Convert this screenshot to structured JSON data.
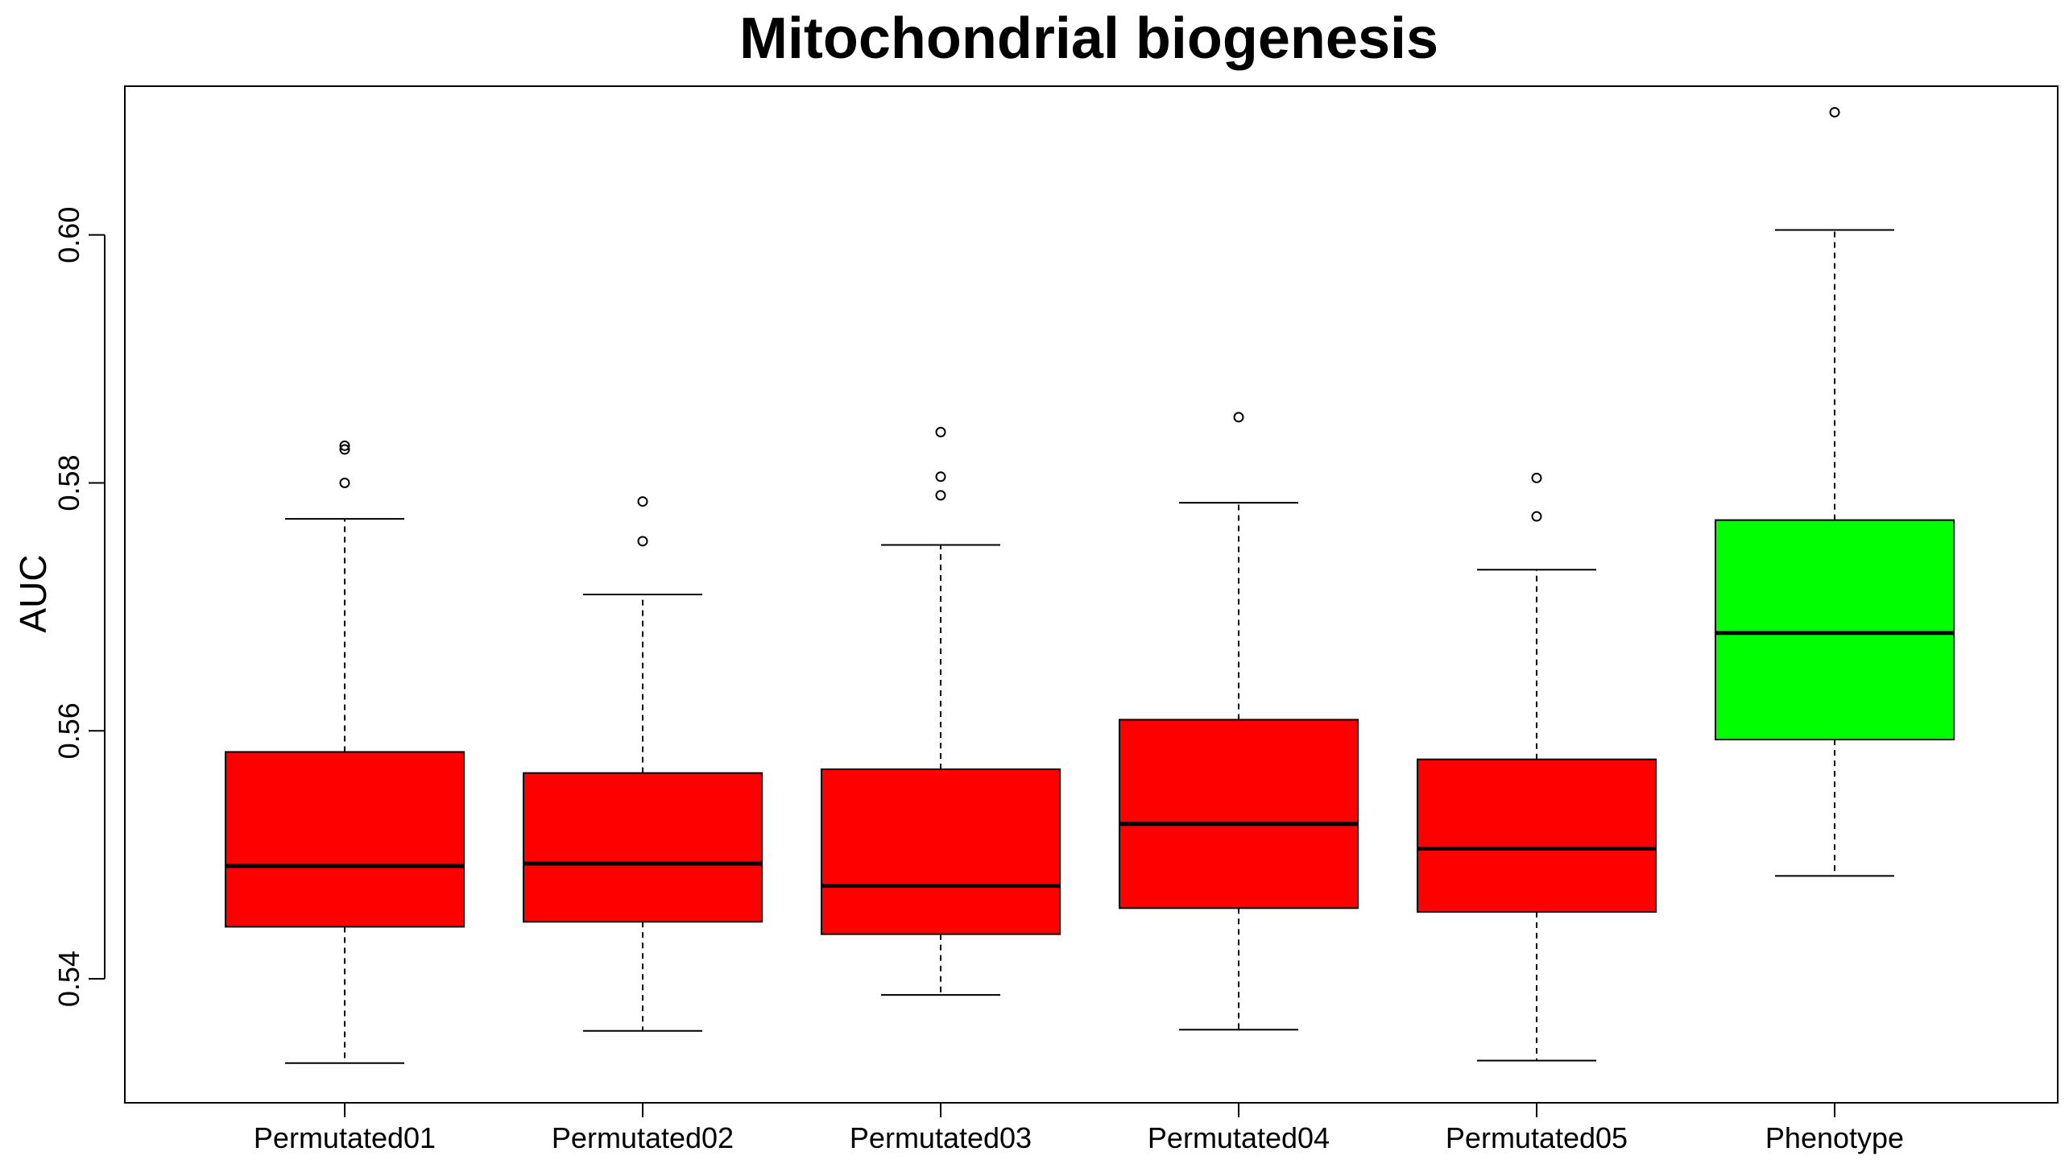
{
  "chart_data": {
    "type": "boxplot",
    "title": "Mitochondrial biogenesis",
    "xlabel": "",
    "ylabel": "AUC",
    "ylim": [
      0.53,
      0.612
    ],
    "yticks": [
      "0.54",
      "0.56",
      "0.58",
      "0.60"
    ],
    "ytick_values": [
      0.54,
      0.56,
      0.58,
      0.6
    ],
    "grid": false,
    "legend": "none",
    "categories": [
      "Permutated01",
      "Permutated02",
      "Permutated03",
      "Permutated04",
      "Permutated05",
      "Phenotype"
    ],
    "boxes": [
      {
        "name": "Permutated01",
        "whisker_low": 0.5332,
        "q1": 0.5442,
        "median": 0.5491,
        "q3": 0.5583,
        "whisker_high": 0.5771,
        "outliers": [
          0.583,
          0.5827,
          0.58
        ],
        "color": "#ff0000"
      },
      {
        "name": "Permutated02",
        "whisker_low": 0.5358,
        "q1": 0.5446,
        "median": 0.5493,
        "q3": 0.5566,
        "whisker_high": 0.571,
        "outliers": [
          0.5785,
          0.5753
        ],
        "color": "#ff0000"
      },
      {
        "name": "Permutated03",
        "whisker_low": 0.5387,
        "q1": 0.5436,
        "median": 0.5475,
        "q3": 0.5569,
        "whisker_high": 0.575,
        "outliers": [
          0.5841,
          0.5805,
          0.579
        ],
        "color": "#ff0000"
      },
      {
        "name": "Permutated04",
        "whisker_low": 0.5359,
        "q1": 0.5457,
        "median": 0.5525,
        "q3": 0.5609,
        "whisker_high": 0.5784,
        "outliers": [
          0.5853
        ],
        "color": "#ff0000"
      },
      {
        "name": "Permutated05",
        "whisker_low": 0.5334,
        "q1": 0.5454,
        "median": 0.5505,
        "q3": 0.5577,
        "whisker_high": 0.573,
        "outliers": [
          0.5804,
          0.5773
        ],
        "color": "#ff0000"
      },
      {
        "name": "Phenotype",
        "whisker_low": 0.5483,
        "q1": 0.5593,
        "median": 0.5679,
        "q3": 0.577,
        "whisker_high": 0.6004,
        "outliers": [
          0.6099
        ],
        "color": "#00ff00"
      }
    ]
  }
}
